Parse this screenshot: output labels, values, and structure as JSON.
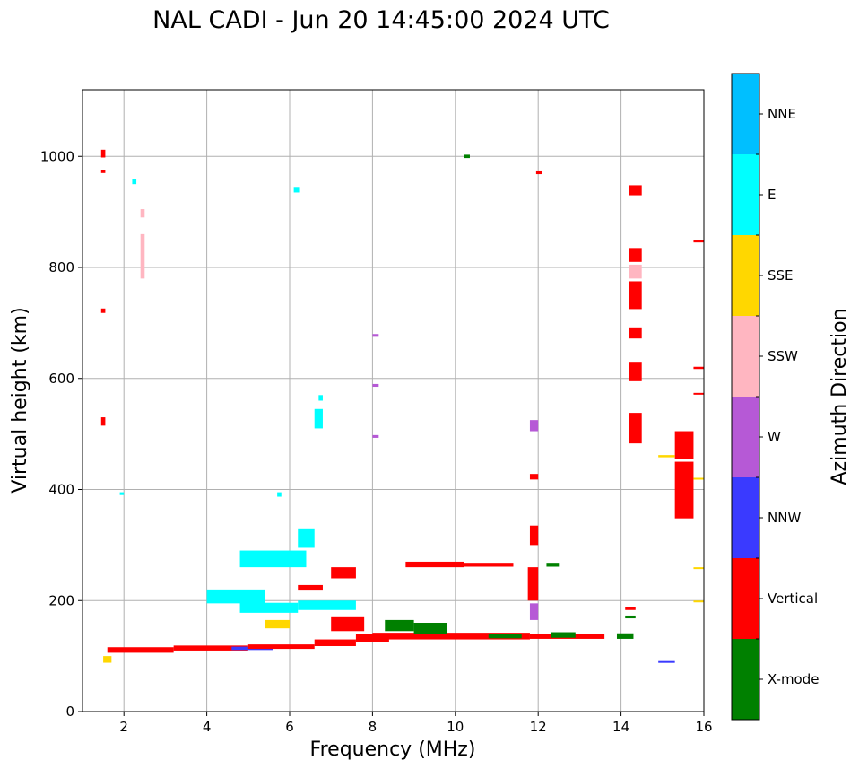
{
  "chart_data": {
    "type": "scatter",
    "title": "NAL CADI - Jun 20 14:45:00 2024 UTC",
    "xlabel": "Frequency (MHz)",
    "ylabel": "Virtual height (km)",
    "xlim": [
      1,
      16
    ],
    "ylim": [
      0,
      1120
    ],
    "xticks": [
      2,
      4,
      6,
      8,
      10,
      12,
      14,
      16
    ],
    "yticks": [
      0,
      200,
      400,
      600,
      800,
      1000
    ],
    "grid": true,
    "colorbar": {
      "label": "Azimuth Direction",
      "categories": [
        {
          "name": "X-mode",
          "color": "#008000"
        },
        {
          "name": "Vertical",
          "color": "#ff0000"
        },
        {
          "name": "NNW",
          "color": "#3a3aff"
        },
        {
          "name": "W",
          "color": "#b659d6"
        },
        {
          "name": "SSW",
          "color": "#ffb6c1"
        },
        {
          "name": "SSE",
          "color": "#ffd700"
        },
        {
          "name": "E",
          "color": "#00ffff"
        },
        {
          "name": "NNE",
          "color": "#00bfff"
        }
      ]
    },
    "echoes": [
      {
        "dir": "Vertical",
        "f1": 1.6,
        "f2": 3.2,
        "h1": 106,
        "h2": 116
      },
      {
        "dir": "Vertical",
        "f1": 3.2,
        "f2": 5.0,
        "h1": 110,
        "h2": 119
      },
      {
        "dir": "NNW",
        "f1": 4.6,
        "f2": 5.6,
        "h1": 111,
        "h2": 117
      },
      {
        "dir": "Vertical",
        "f1": 5.0,
        "f2": 6.6,
        "h1": 113,
        "h2": 121
      },
      {
        "dir": "Vertical",
        "f1": 6.6,
        "f2": 7.6,
        "h1": 118,
        "h2": 130
      },
      {
        "dir": "Vertical",
        "f1": 7.6,
        "f2": 8.4,
        "h1": 125,
        "h2": 140
      },
      {
        "dir": "Vertical",
        "f1": 8.0,
        "f2": 11.8,
        "h1": 130,
        "h2": 142
      },
      {
        "dir": "Vertical",
        "f1": 11.8,
        "f2": 13.6,
        "h1": 131,
        "h2": 140
      },
      {
        "dir": "X-mode",
        "f1": 13.9,
        "f2": 14.3,
        "h1": 131,
        "h2": 141
      },
      {
        "dir": "X-mode",
        "f1": 8.3,
        "f2": 9.0,
        "h1": 145,
        "h2": 165
      },
      {
        "dir": "X-mode",
        "f1": 9.0,
        "f2": 9.8,
        "h1": 140,
        "h2": 160
      },
      {
        "dir": "X-mode",
        "f1": 12.3,
        "f2": 12.9,
        "h1": 133,
        "h2": 143
      },
      {
        "dir": "X-mode",
        "f1": 10.8,
        "f2": 11.6,
        "h1": 132,
        "h2": 140
      },
      {
        "dir": "Vertical",
        "f1": 7.0,
        "f2": 7.8,
        "h1": 145,
        "h2": 170
      },
      {
        "dir": "E",
        "f1": 4.8,
        "f2": 6.2,
        "h1": 178,
        "h2": 196
      },
      {
        "dir": "E",
        "f1": 6.2,
        "f2": 7.6,
        "h1": 183,
        "h2": 200
      },
      {
        "dir": "E",
        "f1": 4.0,
        "f2": 5.4,
        "h1": 195,
        "h2": 220
      },
      {
        "dir": "SSE",
        "f1": 5.4,
        "f2": 6.0,
        "h1": 150,
        "h2": 165
      },
      {
        "dir": "E",
        "f1": 4.8,
        "f2": 6.4,
        "h1": 260,
        "h2": 290
      },
      {
        "dir": "E",
        "f1": 6.2,
        "f2": 6.6,
        "h1": 295,
        "h2": 330
      },
      {
        "dir": "Vertical",
        "f1": 6.2,
        "f2": 6.8,
        "h1": 218,
        "h2": 228
      },
      {
        "dir": "Vertical",
        "f1": 7.0,
        "f2": 7.6,
        "h1": 240,
        "h2": 260
      },
      {
        "dir": "Vertical",
        "f1": 8.8,
        "f2": 10.2,
        "h1": 260,
        "h2": 270
      },
      {
        "dir": "Vertical",
        "f1": 10.2,
        "f2": 11.4,
        "h1": 261,
        "h2": 268
      },
      {
        "dir": "X-mode",
        "f1": 12.2,
        "f2": 12.5,
        "h1": 261,
        "h2": 268
      },
      {
        "dir": "E",
        "f1": 6.6,
        "f2": 6.8,
        "h1": 510,
        "h2": 545
      },
      {
        "dir": "E",
        "f1": 6.7,
        "f2": 6.8,
        "h1": 560,
        "h2": 570
      },
      {
        "dir": "E",
        "f1": 6.1,
        "f2": 6.25,
        "h1": 935,
        "h2": 945
      },
      {
        "dir": "E",
        "f1": 2.2,
        "f2": 2.3,
        "h1": 950,
        "h2": 960
      },
      {
        "dir": "SSW",
        "f1": 2.4,
        "f2": 2.5,
        "h1": 780,
        "h2": 860
      },
      {
        "dir": "SSW",
        "f1": 2.4,
        "f2": 2.5,
        "h1": 890,
        "h2": 905
      },
      {
        "dir": "Vertical",
        "f1": 1.45,
        "f2": 1.55,
        "h1": 515,
        "h2": 530
      },
      {
        "dir": "Vertical",
        "f1": 1.45,
        "f2": 1.55,
        "h1": 718,
        "h2": 726
      },
      {
        "dir": "Vertical",
        "f1": 1.45,
        "f2": 1.55,
        "h1": 998,
        "h2": 1012
      },
      {
        "dir": "Vertical",
        "f1": 1.45,
        "f2": 1.55,
        "h1": 970,
        "h2": 975
      },
      {
        "dir": "X-mode",
        "f1": 10.2,
        "f2": 10.35,
        "h1": 997,
        "h2": 1003
      },
      {
        "dir": "Vertical",
        "f1": 11.95,
        "f2": 12.1,
        "h1": 968,
        "h2": 973
      },
      {
        "dir": "W",
        "f1": 8.0,
        "f2": 8.15,
        "h1": 675,
        "h2": 680
      },
      {
        "dir": "W",
        "f1": 8.0,
        "f2": 8.15,
        "h1": 585,
        "h2": 590
      },
      {
        "dir": "W",
        "f1": 8.0,
        "f2": 8.15,
        "h1": 493,
        "h2": 498
      },
      {
        "dir": "W",
        "f1": 11.8,
        "f2": 12.0,
        "h1": 505,
        "h2": 525
      },
      {
        "dir": "Vertical",
        "f1": 11.8,
        "f2": 12.0,
        "h1": 418,
        "h2": 428
      },
      {
        "dir": "Vertical",
        "f1": 11.8,
        "f2": 12.0,
        "h1": 300,
        "h2": 335
      },
      {
        "dir": "Vertical",
        "f1": 11.75,
        "f2": 12.0,
        "h1": 200,
        "h2": 260
      },
      {
        "dir": "W",
        "f1": 11.8,
        "f2": 12.0,
        "h1": 165,
        "h2": 195
      },
      {
        "dir": "Vertical",
        "f1": 14.2,
        "f2": 14.5,
        "h1": 930,
        "h2": 948
      },
      {
        "dir": "Vertical",
        "f1": 14.2,
        "f2": 14.5,
        "h1": 810,
        "h2": 835
      },
      {
        "dir": "SSW",
        "f1": 14.2,
        "f2": 14.5,
        "h1": 780,
        "h2": 805
      },
      {
        "dir": "Vertical",
        "f1": 14.2,
        "f2": 14.5,
        "h1": 725,
        "h2": 775
      },
      {
        "dir": "Vertical",
        "f1": 14.2,
        "f2": 14.5,
        "h1": 672,
        "h2": 692
      },
      {
        "dir": "Vertical",
        "f1": 14.2,
        "f2": 14.5,
        "h1": 595,
        "h2": 630
      },
      {
        "dir": "Vertical",
        "f1": 14.2,
        "f2": 14.5,
        "h1": 483,
        "h2": 538
      },
      {
        "dir": "Vertical",
        "f1": 14.1,
        "f2": 14.35,
        "h1": 183,
        "h2": 188
      },
      {
        "dir": "X-mode",
        "f1": 14.1,
        "f2": 14.35,
        "h1": 168,
        "h2": 173
      },
      {
        "dir": "Vertical",
        "f1": 15.3,
        "f2": 15.75,
        "h1": 455,
        "h2": 505
      },
      {
        "dir": "Vertical",
        "f1": 15.3,
        "f2": 15.75,
        "h1": 348,
        "h2": 450
      },
      {
        "dir": "SSE",
        "f1": 14.9,
        "f2": 15.3,
        "h1": 458,
        "h2": 462
      },
      {
        "dir": "SSE",
        "f1": 15.75,
        "f2": 16.0,
        "h1": 418,
        "h2": 421
      },
      {
        "dir": "SSE",
        "f1": 15.75,
        "f2": 16.0,
        "h1": 257,
        "h2": 260
      },
      {
        "dir": "SSE",
        "f1": 15.75,
        "f2": 16.0,
        "h1": 197,
        "h2": 200
      },
      {
        "dir": "Vertical",
        "f1": 15.75,
        "f2": 16.0,
        "h1": 845,
        "h2": 850
      },
      {
        "dir": "Vertical",
        "f1": 15.75,
        "f2": 16.0,
        "h1": 617,
        "h2": 621
      },
      {
        "dir": "Vertical",
        "f1": 15.75,
        "f2": 16.0,
        "h1": 571,
        "h2": 574
      },
      {
        "dir": "NNW",
        "f1": 14.9,
        "f2": 15.3,
        "h1": 88,
        "h2": 91
      },
      {
        "dir": "SSE",
        "f1": 1.5,
        "f2": 1.7,
        "h1": 88,
        "h2": 100
      },
      {
        "dir": "E",
        "f1": 1.9,
        "f2": 2.0,
        "h1": 390,
        "h2": 395
      },
      {
        "dir": "E",
        "f1": 5.7,
        "f2": 5.8,
        "h1": 387,
        "h2": 395
      }
    ]
  }
}
